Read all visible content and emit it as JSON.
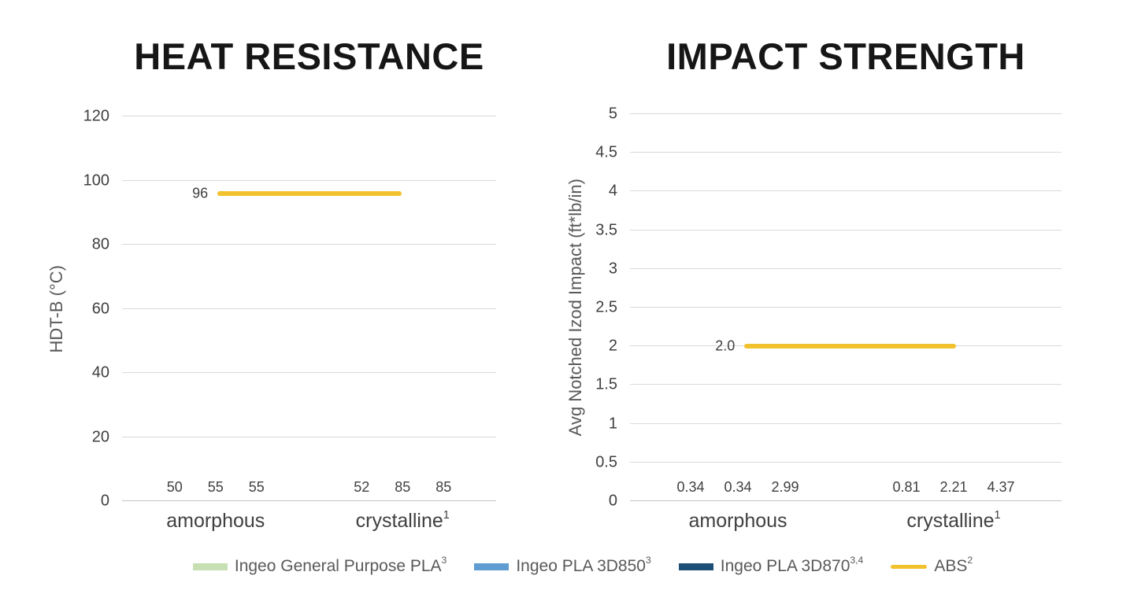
{
  "page": {
    "background": "#ffffff"
  },
  "chart_data": [
    {
      "type": "bar",
      "title": "HEAT RESISTANCE",
      "xlabel": "",
      "ylabel": "HDT-B (°C)",
      "ylim": [
        0,
        120
      ],
      "yticks": [
        0,
        20,
        40,
        60,
        80,
        100,
        120
      ],
      "grid": true,
      "categories": [
        {
          "text": "amorphous",
          "sup": ""
        },
        {
          "text": "crystalline",
          "sup": "1"
        }
      ],
      "series": [
        {
          "name": "Ingeo General Purpose PLA",
          "sup": "3",
          "color": "#c6dfb3",
          "values": [
            50,
            52
          ],
          "labels": [
            "50",
            "52"
          ]
        },
        {
          "name": "Ingeo PLA 3D850",
          "sup": "3",
          "color": "#5f9cd1",
          "values": [
            55,
            85
          ],
          "labels": [
            "55",
            "85"
          ]
        },
        {
          "name": "Ingeo PLA 3D870",
          "sup": "3,4",
          "color": "#1d4f76",
          "values": [
            55,
            85
          ],
          "labels": [
            "55",
            "85"
          ]
        }
      ],
      "ref_line": {
        "name": "ABS",
        "sup": "2",
        "color": "#f2c12e",
        "value": 96,
        "label": "96"
      }
    },
    {
      "type": "bar",
      "title": "IMPACT STRENGTH",
      "xlabel": "",
      "ylabel": "Avg Notched Izod Impact (ft*lb/in)",
      "ylim": [
        0,
        5
      ],
      "yticks": [
        0,
        0.5,
        1,
        1.5,
        2,
        2.5,
        3,
        3.5,
        4,
        4.5,
        5
      ],
      "grid": true,
      "categories": [
        {
          "text": "amorphous",
          "sup": ""
        },
        {
          "text": "crystalline",
          "sup": "1"
        }
      ],
      "series": [
        {
          "name": "Ingeo General Purpose PLA",
          "sup": "3",
          "color": "#c6dfb3",
          "values": [
            0.34,
            0.81
          ],
          "labels": [
            "0.34",
            "0.81"
          ]
        },
        {
          "name": "Ingeo PLA 3D850",
          "sup": "3",
          "color": "#5f9cd1",
          "values": [
            0.34,
            2.21
          ],
          "labels": [
            "0.34",
            "2.21"
          ]
        },
        {
          "name": "Ingeo PLA 3D870",
          "sup": "3,4",
          "color": "#1d4f76",
          "values": [
            2.99,
            4.37
          ],
          "labels": [
            "2.99",
            "4.37"
          ]
        }
      ],
      "ref_line": {
        "name": "ABS",
        "sup": "2",
        "color": "#f2c12e",
        "value": 2,
        "label": "2.0"
      }
    }
  ],
  "legend": {
    "position": "bottom-center",
    "items": [
      {
        "label": "Ingeo General Purpose PLA",
        "sup": "3",
        "swatch": "bar",
        "color": "#c6dfb3"
      },
      {
        "label": "Ingeo PLA 3D850",
        "sup": "3",
        "swatch": "bar",
        "color": "#5f9cd1"
      },
      {
        "label": "Ingeo PLA 3D870",
        "sup": "3,4",
        "swatch": "bar",
        "color": "#1d4f76"
      },
      {
        "label": "ABS",
        "sup": "2",
        "swatch": "line",
        "color": "#f2c12e"
      }
    ]
  }
}
